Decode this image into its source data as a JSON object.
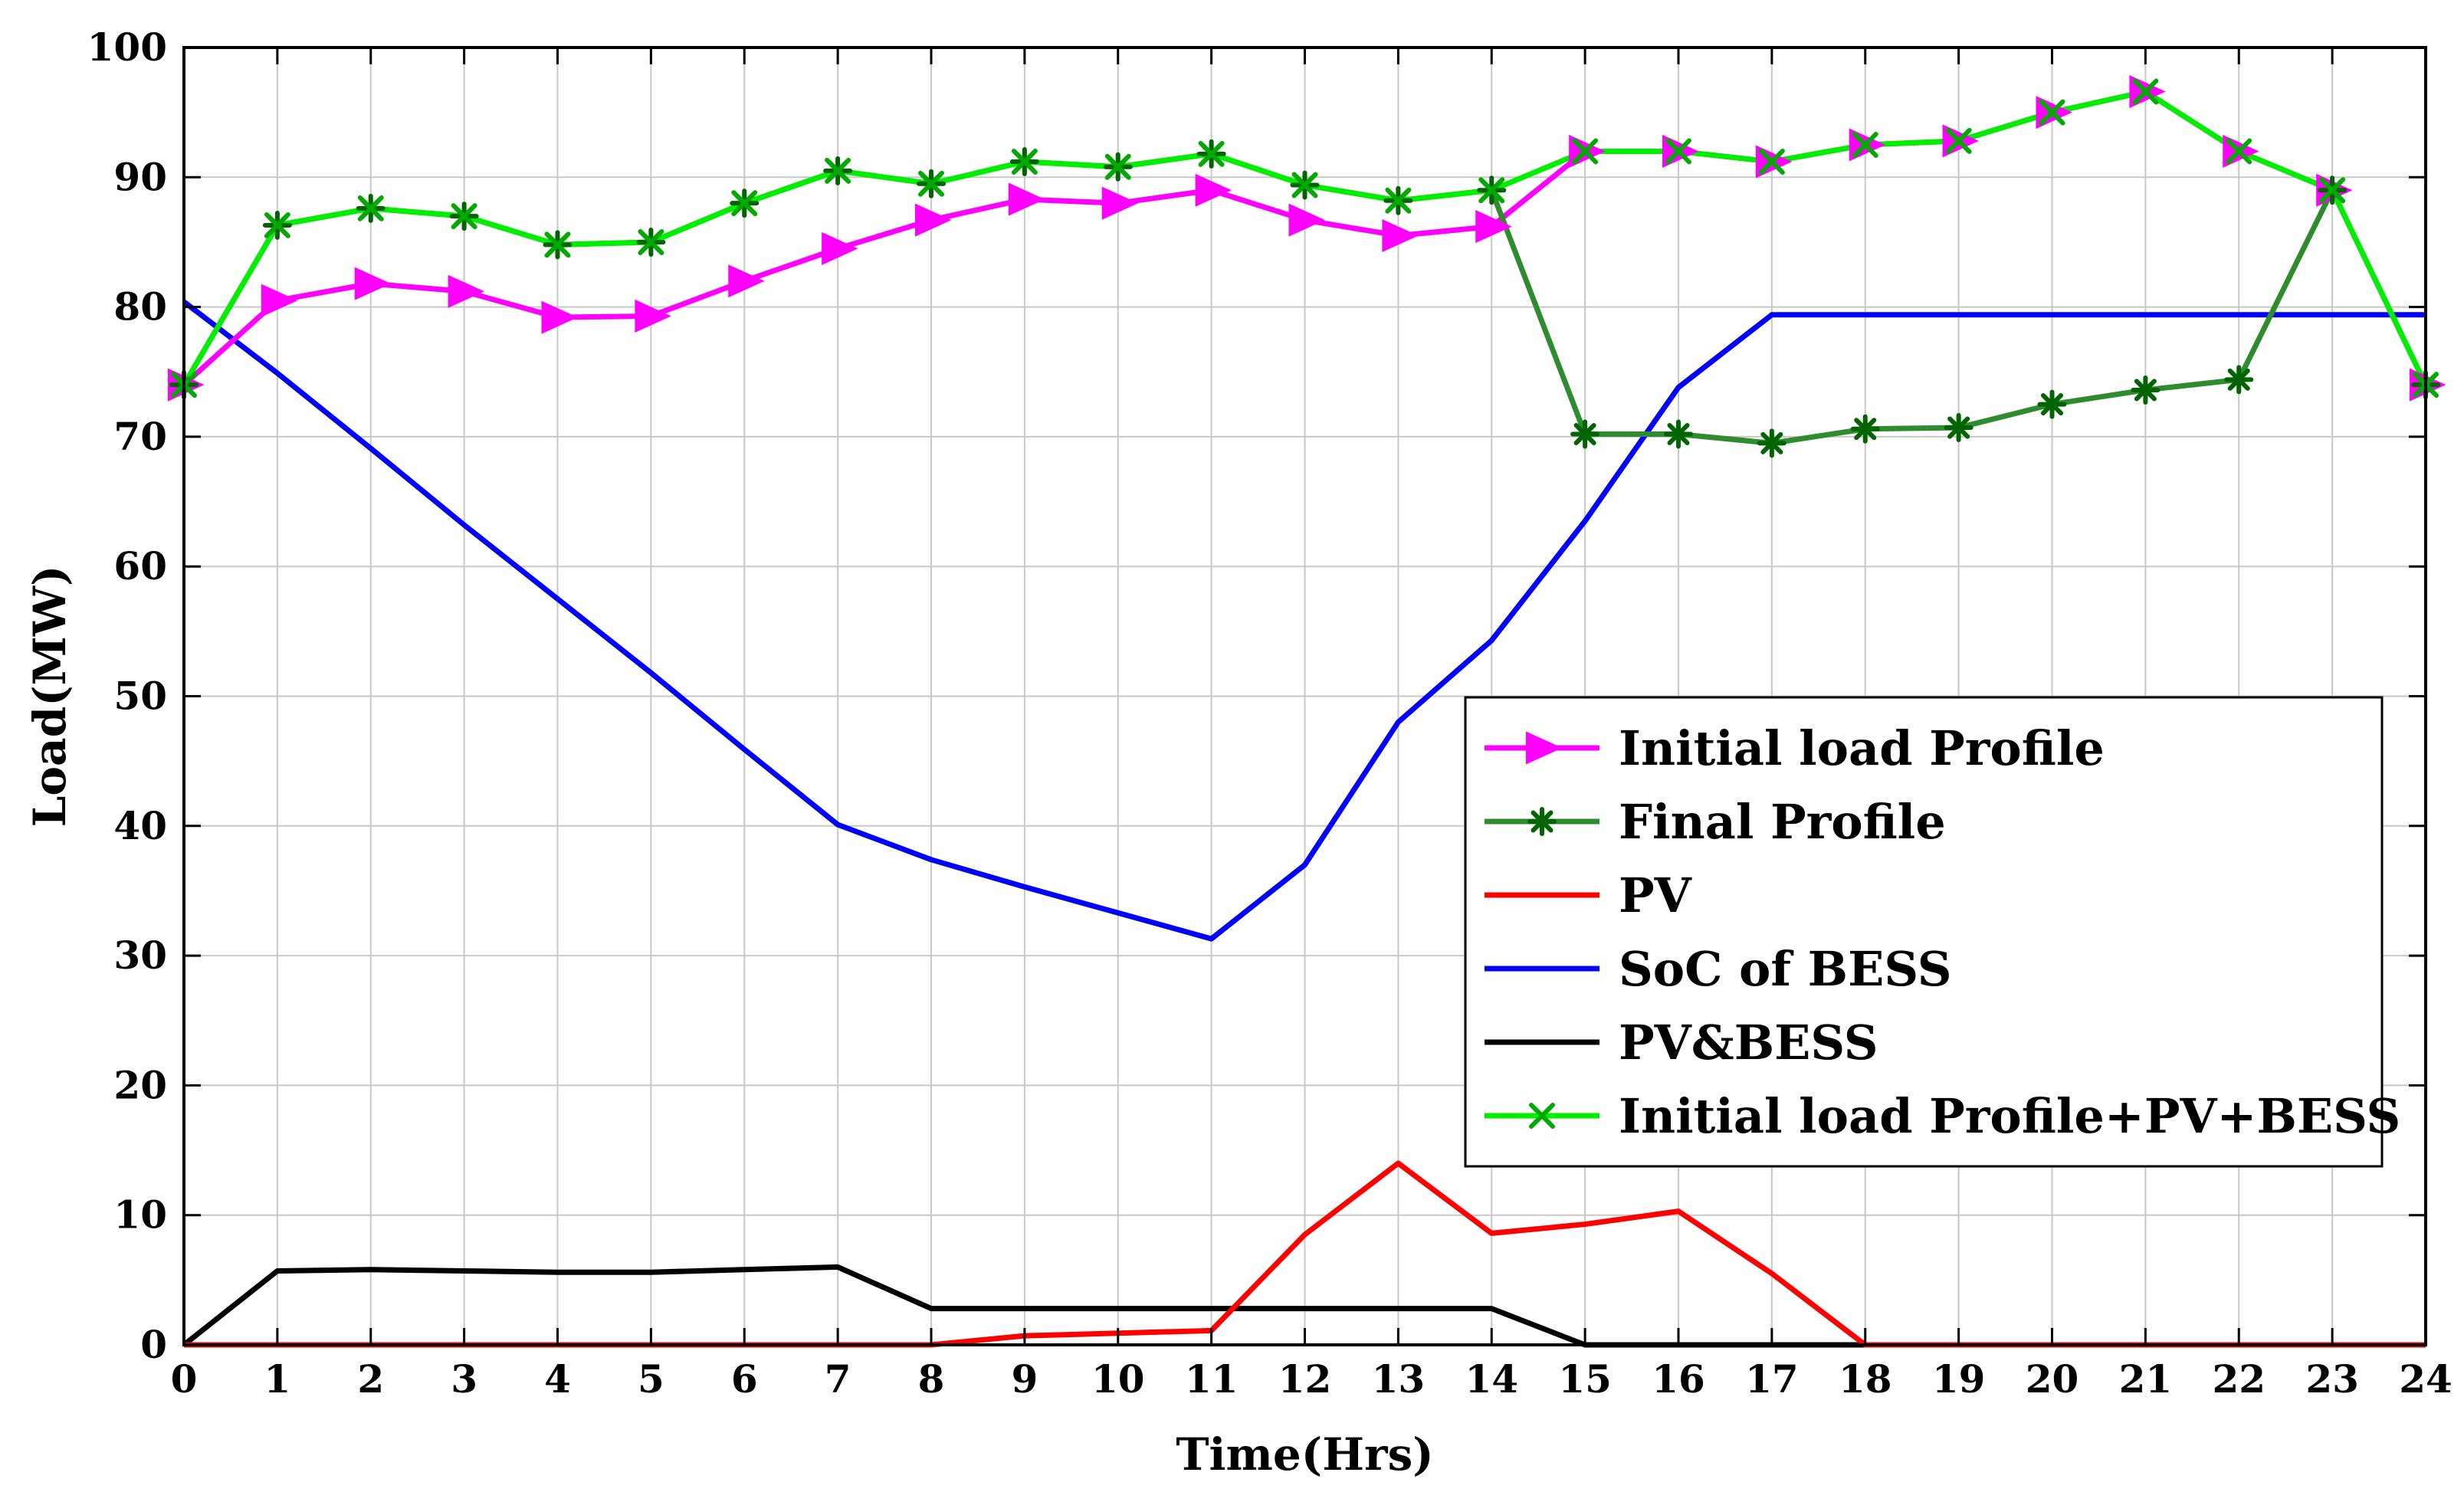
{
  "chart_data": {
    "type": "line",
    "xlabel": "Time(Hrs)",
    "ylabel": "Load(MW)",
    "xlim": [
      0,
      24
    ],
    "ylim": [
      0,
      100
    ],
    "x_ticks": [
      0,
      1,
      2,
      3,
      4,
      5,
      6,
      7,
      8,
      9,
      10,
      11,
      12,
      13,
      14,
      15,
      16,
      17,
      18,
      19,
      20,
      21,
      22,
      23,
      24
    ],
    "y_ticks": [
      0,
      10,
      20,
      30,
      40,
      50,
      60,
      70,
      80,
      90,
      100
    ],
    "grid": true,
    "legend_position": "right-center",
    "x": [
      0,
      1,
      2,
      3,
      4,
      5,
      6,
      7,
      8,
      9,
      10,
      11,
      12,
      13,
      14,
      15,
      16,
      17,
      18,
      19,
      20,
      21,
      22,
      23,
      24
    ],
    "series": [
      {
        "name": "Initial load Profile",
        "color": "#ff00ff",
        "marker": "triangle-right",
        "marker_color": "#ff00ff",
        "values": [
          74.0,
          80.5,
          81.8,
          81.2,
          79.2,
          79.3,
          82.0,
          84.5,
          86.7,
          88.3,
          88.0,
          89.0,
          86.7,
          85.5,
          86.2,
          92.0,
          92.0,
          91.2,
          92.5,
          92.8,
          95.0,
          96.6,
          92.0,
          89.0,
          74.0
        ]
      },
      {
        "name": "Final Profile",
        "color": "#2e8b2e",
        "marker": "asterisk",
        "marker_color": "#006400",
        "values": [
          74.0,
          86.3,
          87.6,
          87.0,
          84.8,
          85.0,
          88.0,
          90.5,
          89.5,
          91.2,
          90.8,
          91.8,
          89.4,
          88.2,
          89.0,
          70.2,
          70.2,
          69.5,
          70.6,
          70.7,
          72.5,
          73.6,
          74.4,
          89.0,
          74.0
        ]
      },
      {
        "name": "PV",
        "color": "#ff0000",
        "marker": "none",
        "values": [
          0,
          0,
          0,
          0,
          0,
          0,
          0,
          0,
          0,
          0.7,
          0.9,
          1.1,
          8.5,
          14.0,
          8.6,
          9.3,
          10.3,
          5.5,
          0,
          0,
          0,
          0,
          0,
          0,
          0
        ]
      },
      {
        "name": "SoC of BESS",
        "color": "#0000ff",
        "marker": "none",
        "values": [
          80.4,
          74.9,
          69.1,
          63.2,
          57.5,
          51.8,
          45.9,
          40.1,
          37.4,
          35.3,
          33.3,
          31.3,
          37.0,
          48.0,
          54.3,
          63.5,
          73.8,
          79.4,
          79.4,
          79.4,
          79.4,
          79.4,
          79.4,
          79.4,
          79.4
        ]
      },
      {
        "name": "PV&BESS",
        "color": "#000000",
        "marker": "none",
        "values": [
          0,
          5.7,
          5.8,
          5.7,
          5.6,
          5.6,
          5.8,
          6.0,
          2.8,
          2.8,
          2.8,
          2.8,
          2.8,
          2.8,
          2.8,
          0,
          0,
          0,
          0,
          0,
          0,
          0,
          0,
          0,
          0
        ]
      },
      {
        "name": "Initial load Profile+PV+BESS",
        "color": "#00ee00",
        "marker": "x",
        "marker_color": "#00aa00",
        "values": [
          74.0,
          86.3,
          87.6,
          87.0,
          84.8,
          85.0,
          88.0,
          90.5,
          89.5,
          91.2,
          90.8,
          91.8,
          89.4,
          88.2,
          89.0,
          92.0,
          92.0,
          91.2,
          92.5,
          92.8,
          95.0,
          96.6,
          92.0,
          89.0,
          74.0
        ]
      }
    ]
  }
}
